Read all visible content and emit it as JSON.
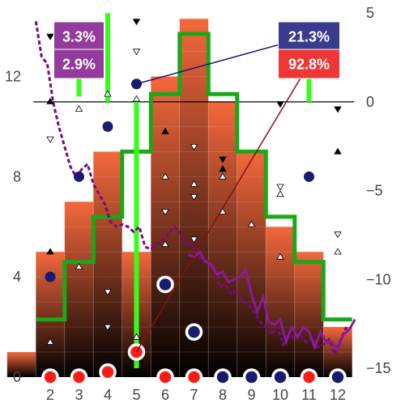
{
  "chart_data": {
    "type": "bar",
    "title": "",
    "xlabel": "",
    "ylabel": "",
    "x_ticks": [
      2,
      3,
      4,
      5,
      6,
      7,
      8,
      9,
      10,
      11,
      12
    ],
    "y_left": {
      "range": [
        0,
        14.6
      ],
      "ticks": [
        0,
        4,
        8,
        12
      ]
    },
    "y_right": {
      "range": [
        -15.5,
        5.1
      ],
      "ticks": [
        5,
        0,
        -5,
        -10,
        -15
      ]
    },
    "grid": false,
    "legend": "none",
    "colors": {
      "bar_gradient_top": "#f4683c",
      "bar_gradient_bottom": "#000000",
      "step_line": "#1aa81a",
      "green_error_bars": "#33ff1a",
      "dashed_line": "#7a0a7a",
      "solid_line": "#8a1a9a",
      "navy_marker": "#1a1a6e",
      "red_marker": "#ff1a1a",
      "zero_line": "#000000"
    },
    "bars": {
      "x": [
        1,
        2,
        3,
        4,
        5,
        6,
        7,
        8,
        9,
        10,
        11,
        12
      ],
      "values": [
        1,
        2,
        3,
        4,
        5,
        6,
        7,
        8,
        9,
        10,
        11,
        12
      ],
      "heights": [
        1,
        5,
        7,
        9,
        5,
        12,
        14.3,
        11,
        9,
        6,
        5,
        2
      ]
    },
    "step_line": {
      "x": [
        1.5,
        2.5,
        3.5,
        4.5,
        5.5,
        6.5,
        7.5,
        8.5,
        9.5,
        10.5,
        11.5,
        12.5
      ],
      "y": [
        2.3,
        4.6,
        6.4,
        9.0,
        11.3,
        13.7,
        11.3,
        9.0,
        6.4,
        4.6,
        2.3,
        2.3
      ]
    },
    "green_error_bars": [
      {
        "x": 3,
        "y_right": [
          0.3,
          4.5
        ]
      },
      {
        "x": 4,
        "y_right": [
          0,
          5
        ]
      },
      {
        "x": 5,
        "y_right": [
          -15,
          0
        ]
      },
      {
        "x": 11,
        "y_right": [
          0,
          2
        ]
      }
    ],
    "zero_line": {
      "y_right": 0,
      "x_range": [
        1.5,
        12.4
      ]
    },
    "navy_dots": [
      {
        "x": 2,
        "y": 4
      },
      {
        "x": 3,
        "y": 8
      },
      {
        "x": 4,
        "y": 10
      },
      {
        "x": 5,
        "y": 11.7
      },
      {
        "x": 11,
        "y": 8
      }
    ],
    "ringed_markers": [
      {
        "x": 2,
        "y": 0,
        "color": "red"
      },
      {
        "x": 3,
        "y": 0,
        "color": "red"
      },
      {
        "x": 4,
        "y": 0.2,
        "color": "red"
      },
      {
        "x": 5,
        "y": 1,
        "color": "red"
      },
      {
        "x": 6,
        "y": 3.7,
        "color": "navy"
      },
      {
        "x": 6,
        "y": 0,
        "color": "red"
      },
      {
        "x": 7,
        "y": 1.8,
        "color": "navy"
      },
      {
        "x": 7,
        "y": 0,
        "color": "red"
      },
      {
        "x": 8,
        "y": 0,
        "color": "navy"
      },
      {
        "x": 9,
        "y": 0,
        "color": "navy"
      },
      {
        "x": 10,
        "y": 0,
        "color": "navy"
      },
      {
        "x": 11,
        "y": 0,
        "color": "red"
      },
      {
        "x": 12,
        "y": 0,
        "color": "navy"
      }
    ],
    "dashed_line": {
      "x": [
        1.5,
        1.7,
        1.9,
        2.1,
        2.3,
        2.5,
        2.7,
        2.9,
        3.1,
        3.3,
        3.5,
        3.7,
        3.9,
        4.1,
        4.3,
        4.5,
        4.7,
        4.9,
        5.1,
        5.3,
        5.5,
        5.7,
        5.9,
        6.1,
        6.3,
        6.5,
        6.7,
        6.9,
        7.1,
        7.3,
        7.5,
        7.7,
        7.9,
        8.1,
        8.3,
        8.5,
        8.7,
        8.9,
        9.1,
        9.3,
        9.5,
        9.7,
        9.9,
        10.1,
        10.3,
        10.5,
        10.7,
        10.9,
        11.1,
        11.3,
        11.5,
        11.7,
        11.9,
        12.1,
        12.3
      ],
      "y": [
        14.2,
        12.8,
        12.5,
        11.0,
        10.0,
        9.2,
        8.4,
        8.0,
        8.3,
        8.5,
        7.7,
        7.3,
        6.9,
        6.2,
        6.0,
        6.1,
        6.0,
        5.8,
        6.0,
        5.2,
        5.1,
        5.3,
        5.5,
        5.7,
        6.0,
        5.8,
        5.3,
        5.4,
        4.8,
        4.7,
        4.6,
        4.2,
        3.6,
        3.7,
        3.3,
        3.5,
        3.0,
        2.9,
        2.6,
        2.2,
        2.0,
        1.7,
        2.0,
        1.3,
        1.8,
        1.5,
        1.7,
        1.4,
        1.6,
        1.2,
        1.3,
        1.5,
        0.9,
        1.5,
        2.0
      ]
    },
    "solid_line": {
      "x": [
        6.8,
        7.0,
        7.2,
        7.4,
        7.6,
        7.8,
        8.0,
        8.2,
        8.4,
        8.6,
        8.8,
        9.0,
        9.2,
        9.4,
        9.6,
        9.8,
        10.0,
        10.2,
        10.4,
        10.6,
        10.8,
        11.0,
        11.2,
        11.4,
        11.6,
        11.8,
        12.0,
        12.2,
        12.4,
        12.6
      ],
      "y": [
        4.9,
        4.8,
        5.0,
        4.6,
        4.5,
        4.1,
        4.2,
        3.8,
        3.9,
        4.0,
        4.3,
        3.3,
        2.6,
        3.2,
        2.2,
        2.1,
        2.3,
        1.4,
        2.0,
        1.6,
        2.0,
        1.8,
        1.2,
        1.8,
        1.4,
        1.4,
        1.1,
        1.7,
        1.9,
        2.3
      ]
    },
    "triangle_markers": [
      {
        "x": 2,
        "y": 13.6,
        "dir": "down",
        "fill": "black"
      },
      {
        "x": 2,
        "y": 5,
        "dir": "up",
        "fill": "black"
      },
      {
        "x": 2,
        "y": 11,
        "dir": "up",
        "fill": "black"
      },
      {
        "x": 2,
        "y": 9.5,
        "dir": "down",
        "fill": "white"
      },
      {
        "x": 2,
        "y": 1.4,
        "dir": "up",
        "fill": "white"
      },
      {
        "x": 3,
        "y": 10.7,
        "dir": "up",
        "fill": "white"
      },
      {
        "x": 3,
        "y": 4.4,
        "dir": "up",
        "fill": "white"
      },
      {
        "x": 4,
        "y": 11.3,
        "dir": "up",
        "fill": "white"
      },
      {
        "x": 4,
        "y": 3.4,
        "dir": "down",
        "fill": "white"
      },
      {
        "x": 4,
        "y": 2.0,
        "dir": "down",
        "fill": "white"
      },
      {
        "x": 5,
        "y": 14.2,
        "dir": "down",
        "fill": "black"
      },
      {
        "x": 5,
        "y": 13.0,
        "dir": "down",
        "fill": "white"
      },
      {
        "x": 5,
        "y": 11.1,
        "dir": "up",
        "fill": "white"
      },
      {
        "x": 5,
        "y": 1.6,
        "dir": "up",
        "fill": "white"
      },
      {
        "x": 6,
        "y": 9.8,
        "dir": "up",
        "fill": "black"
      },
      {
        "x": 6,
        "y": 8.0,
        "dir": "up",
        "fill": "white"
      },
      {
        "x": 6,
        "y": 6.6,
        "dir": "down",
        "fill": "white"
      },
      {
        "x": 6,
        "y": 5.3,
        "dir": "up",
        "fill": "white"
      },
      {
        "x": 7,
        "y": 9.2,
        "dir": "down",
        "fill": "white"
      },
      {
        "x": 7,
        "y": 7.7,
        "dir": "up",
        "fill": "white"
      },
      {
        "x": 7,
        "y": 7.2,
        "dir": "down",
        "fill": "white"
      },
      {
        "x": 7,
        "y": 5.5,
        "dir": "down",
        "fill": "white"
      },
      {
        "x": 8,
        "y": 8.7,
        "dir": "down",
        "fill": "black"
      },
      {
        "x": 8,
        "y": 8.3,
        "dir": "up",
        "fill": "black"
      },
      {
        "x": 8,
        "y": 8.0,
        "dir": "up",
        "fill": "white"
      },
      {
        "x": 8,
        "y": 6.6,
        "dir": "up",
        "fill": "white"
      },
      {
        "x": 9,
        "y": 6.1,
        "dir": "up",
        "fill": "white"
      },
      {
        "x": 10,
        "y": 10.9,
        "dir": "down",
        "fill": "black"
      },
      {
        "x": 10,
        "y": 7.6,
        "dir": "down",
        "fill": "white"
      },
      {
        "x": 10,
        "y": 7.3,
        "dir": "up",
        "fill": "white"
      },
      {
        "x": 10,
        "y": 4.8,
        "dir": "up",
        "fill": "white"
      },
      {
        "x": 12,
        "y": 10.7,
        "dir": "down",
        "fill": "black"
      },
      {
        "x": 12,
        "y": 9.0,
        "dir": "up",
        "fill": "black"
      },
      {
        "x": 12,
        "y": 5.7,
        "dir": "down",
        "fill": "white"
      },
      {
        "x": 12,
        "y": 5.0,
        "dir": "up",
        "fill": "white"
      }
    ],
    "annotations": [
      {
        "text": "3.3%",
        "bg": "#943a9c",
        "box_at": {
          "x": 3,
          "y": 13.6
        },
        "arrow_to": null
      },
      {
        "text": "2.9%",
        "bg": "#943a9c",
        "box_at": {
          "x": 3,
          "y": 12.5
        },
        "arrow_to": null
      },
      {
        "text": "21.3%",
        "bg": "#3b3b8e",
        "box_at": {
          "x": 11,
          "y": 13.6
        },
        "arrow_to": {
          "x": 5,
          "y": 11.7
        },
        "arrow_color": "#1a1a6e"
      },
      {
        "text": "92.8%",
        "bg": "#ef3737",
        "box_at": {
          "x": 11,
          "y": 12.5
        },
        "arrow_to": {
          "x": 5,
          "y": 1
        },
        "arrow_color": "#8a1010"
      }
    ]
  }
}
